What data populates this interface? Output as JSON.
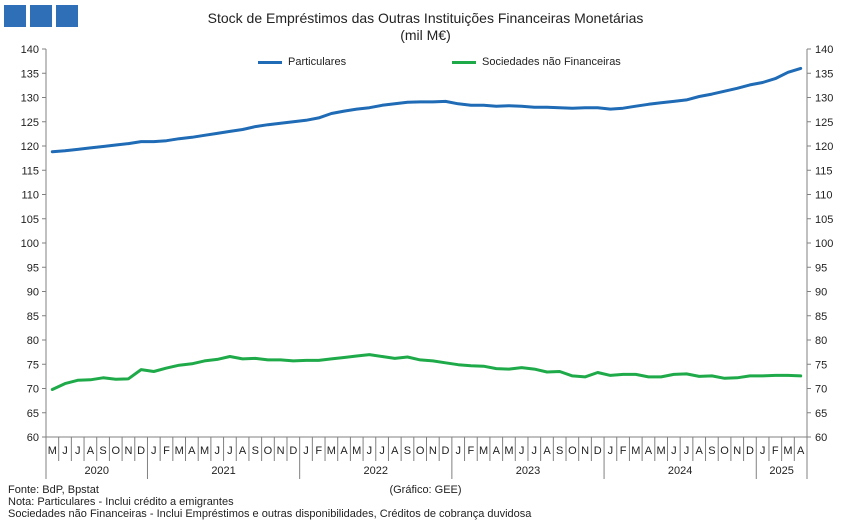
{
  "title_line1": "Stock de Empréstimos  das Outras Instituições  Financeiras Monetárias",
  "title_line2": "(mil M€)",
  "notes": [
    "Fonte: BdP, Bpstat",
    "Nota: Particulares - Inclui crédito a emigrantes",
    "Sociedades não Financeiras - Inclui Empréstimos e outras disponibilidades,  Créditos de cobrança duvidosa"
  ],
  "graph_source": "(Gráfico: GEE)",
  "colors": {
    "particulares": "#1f6bb5",
    "snf": "#1faa4a",
    "logo": "#2e6fb7"
  },
  "chart_data": {
    "type": "line",
    "title": "Stock de Empréstimos  das Outras Instituições  Financeiras Monetárias",
    "subtitle": "(mil M€)",
    "ylim": [
      60,
      140
    ],
    "ytick_step": 5,
    "grid": false,
    "legend_position": "top",
    "month_labels": [
      "M",
      "J",
      "J",
      "A",
      "S",
      "O",
      "N",
      "D",
      "J",
      "F",
      "M",
      "A",
      "M",
      "J",
      "J",
      "A",
      "S",
      "O",
      "N",
      "D",
      "J",
      "F",
      "M",
      "A",
      "M",
      "J",
      "J",
      "A",
      "S",
      "O",
      "N",
      "D",
      "J",
      "F",
      "M",
      "A",
      "M",
      "J",
      "J",
      "A",
      "S",
      "O",
      "N",
      "D",
      "J",
      "F",
      "M",
      "A",
      "M",
      "J",
      "J",
      "A",
      "S",
      "O",
      "N",
      "D",
      "J",
      "F",
      "M",
      "A"
    ],
    "year_groups": [
      {
        "label": "2020",
        "count": 8
      },
      {
        "label": "2021",
        "count": 12
      },
      {
        "label": "2022",
        "count": 12
      },
      {
        "label": "2023",
        "count": 12
      },
      {
        "label": "2024",
        "count": 12
      },
      {
        "label": "2025",
        "count": 4
      }
    ],
    "series": [
      {
        "name": "Particulares",
        "color": "#1f6bb5",
        "values": [
          118.8,
          119.0,
          119.3,
          119.6,
          119.9,
          120.2,
          120.5,
          120.9,
          120.9,
          121.1,
          121.5,
          121.8,
          122.2,
          122.6,
          123.0,
          123.4,
          124.0,
          124.4,
          124.7,
          125.0,
          125.3,
          125.8,
          126.7,
          127.2,
          127.6,
          127.9,
          128.4,
          128.7,
          129.0,
          129.1,
          129.1,
          129.2,
          128.7,
          128.4,
          128.4,
          128.2,
          128.3,
          128.2,
          128.0,
          128.0,
          127.9,
          127.8,
          127.9,
          127.9,
          127.6,
          127.8,
          128.2,
          128.6,
          128.9,
          129.2,
          129.5,
          130.2,
          130.7,
          131.3,
          131.9,
          132.6,
          133.1,
          133.9,
          135.2,
          136.0
        ]
      },
      {
        "name": "Sociedades não Financeiras",
        "color": "#1faa4a",
        "values": [
          69.8,
          71.0,
          71.7,
          71.8,
          72.2,
          71.9,
          72.0,
          73.9,
          73.5,
          74.2,
          74.8,
          75.1,
          75.7,
          76.0,
          76.6,
          76.1,
          76.2,
          75.9,
          75.9,
          75.7,
          75.8,
          75.8,
          76.1,
          76.4,
          76.7,
          77.0,
          76.6,
          76.2,
          76.5,
          75.9,
          75.7,
          75.3,
          74.9,
          74.7,
          74.6,
          74.1,
          74.0,
          74.3,
          74.0,
          73.4,
          73.5,
          72.6,
          72.4,
          73.3,
          72.7,
          72.9,
          72.9,
          72.4,
          72.4,
          72.9,
          73.0,
          72.5,
          72.6,
          72.1,
          72.2,
          72.6,
          72.6,
          72.7,
          72.7,
          72.6
        ]
      }
    ]
  }
}
